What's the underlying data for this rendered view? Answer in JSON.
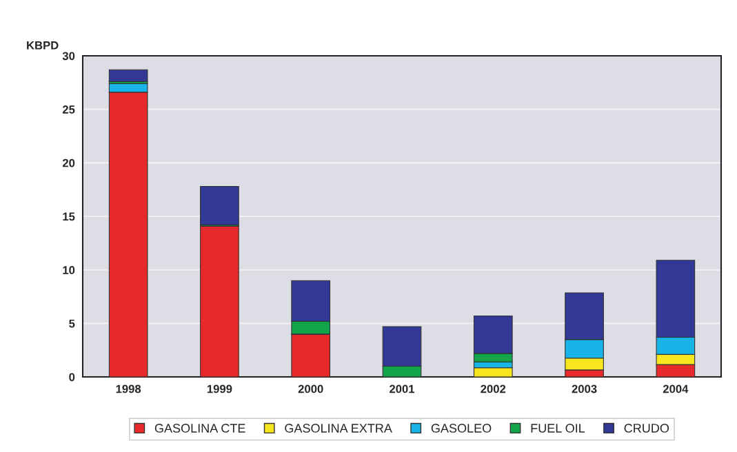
{
  "chart_data": {
    "type": "bar",
    "stacked": true,
    "ylabel": "KBPD",
    "categories": [
      "1998",
      "1999",
      "2000",
      "2001",
      "2002",
      "2003",
      "2004"
    ],
    "ylim": [
      0,
      30
    ],
    "yticks": [
      0,
      5,
      10,
      15,
      20,
      25,
      30
    ],
    "grid": "y",
    "legend": "bottom",
    "series": [
      {
        "name": "GASOLINA CTE",
        "color": "#e8292b",
        "values": [
          26.6,
          14.1,
          4.0,
          0,
          0,
          0.65,
          1.15
        ]
      },
      {
        "name": "GASOLINA EXTRA",
        "color": "#f7e61e",
        "values": [
          0,
          0,
          0,
          0,
          0.85,
          1.1,
          0.95
        ]
      },
      {
        "name": "GASOLEO",
        "color": "#18b4e8",
        "values": [
          0.8,
          0,
          0,
          0,
          0.55,
          1.75,
          1.6
        ]
      },
      {
        "name": "FUEL OIL",
        "color": "#12a44a",
        "values": [
          0.2,
          0.1,
          1.2,
          1.0,
          0.8,
          0,
          0
        ]
      },
      {
        "name": "CRUDO",
        "color": "#323896",
        "values": [
          1.1,
          3.6,
          3.8,
          3.7,
          3.5,
          4.35,
          7.2
        ]
      }
    ]
  }
}
